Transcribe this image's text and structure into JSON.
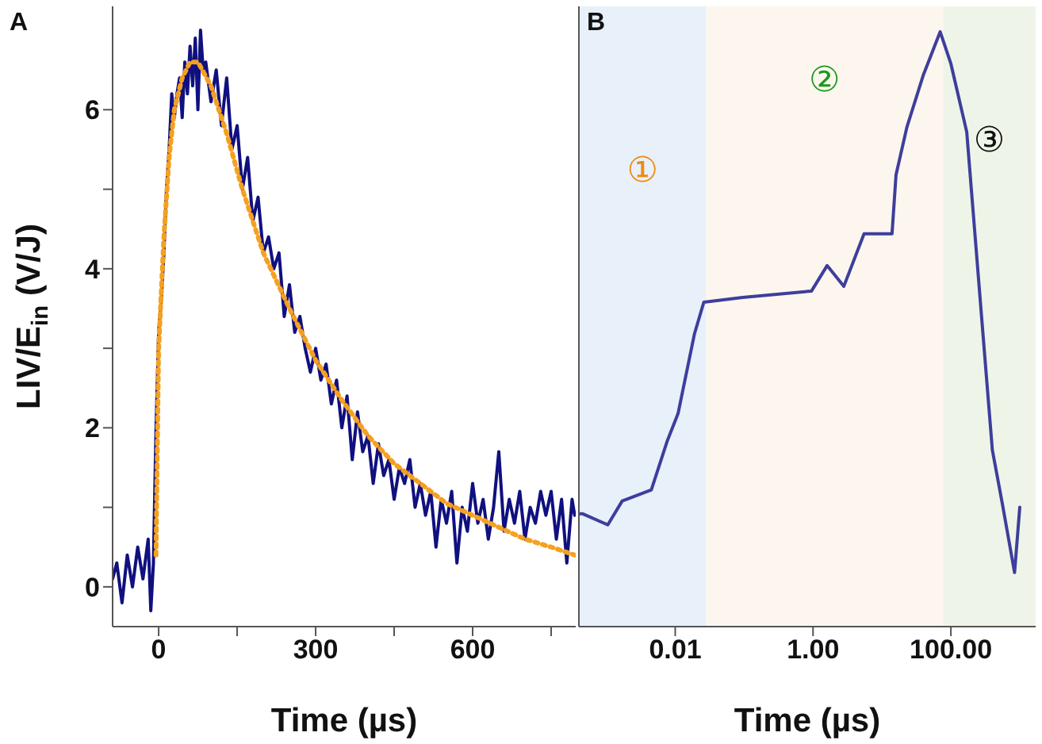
{
  "chart_data": [
    {
      "type": "line",
      "title": "A",
      "xlabel": "Time (µs)",
      "ylabel": "LIV/E$_{in}$ (V/J)",
      "xlim": [
        -88,
        797
      ],
      "xticks": [
        0,
        {
          "value": 150,
          "label": null
        },
        300,
        {
          "value": 450,
          "label": null
        },
        600,
        {
          "value": 750,
          "label": null
        }
      ],
      "ylim": [
        -0.5,
        7.3
      ],
      "yticks": [
        0,
        {
          "value": 1,
          "label": null
        },
        2,
        {
          "value": 3,
          "label": null
        },
        4,
        {
          "value": 5,
          "label": null
        },
        6
      ],
      "series": [
        {
          "color": "#10107f",
          "line_style": "solid",
          "x": [
            -88,
            -80,
            -70,
            -60,
            -50,
            -40,
            -30,
            -20,
            -15,
            -10,
            -5,
            0,
            5,
            10,
            15,
            20,
            25,
            30,
            35,
            40,
            45,
            50,
            55,
            60,
            65,
            70,
            75,
            80,
            85,
            90,
            100,
            110,
            120,
            130,
            140,
            150,
            160,
            170,
            180,
            190,
            200,
            210,
            220,
            230,
            240,
            250,
            260,
            270,
            280,
            290,
            300,
            310,
            320,
            330,
            340,
            350,
            360,
            370,
            380,
            390,
            400,
            410,
            420,
            430,
            440,
            450,
            460,
            470,
            480,
            490,
            500,
            510,
            520,
            530,
            540,
            550,
            560,
            570,
            580,
            590,
            600,
            610,
            620,
            630,
            640,
            650,
            660,
            670,
            680,
            690,
            700,
            710,
            720,
            730,
            740,
            750,
            760,
            770,
            780,
            790,
            795
          ],
          "values": [
            0.1,
            0.3,
            -0.2,
            0.4,
            0.0,
            0.5,
            0.1,
            0.6,
            -0.3,
            0.3,
            2.0,
            3.2,
            3.6,
            4.2,
            5.0,
            5.5,
            6.2,
            5.9,
            6.2,
            6.4,
            5.9,
            6.6,
            6.2,
            6.8,
            6.3,
            6.9,
            6.0,
            7.0,
            6.5,
            6.6,
            6.1,
            6.5,
            5.8,
            6.4,
            5.5,
            5.8,
            5.0,
            5.4,
            4.6,
            4.9,
            4.2,
            4.4,
            4.0,
            4.2,
            3.4,
            3.8,
            3.2,
            3.4,
            3.0,
            2.7,
            3.0,
            2.6,
            2.8,
            2.3,
            2.6,
            2.0,
            2.4,
            1.6,
            2.2,
            1.7,
            1.9,
            1.3,
            1.8,
            1.4,
            1.6,
            1.1,
            1.5,
            1.3,
            1.6,
            1.0,
            1.3,
            0.9,
            1.2,
            0.5,
            1.1,
            0.8,
            1.2,
            0.3,
            1.0,
            0.7,
            1.3,
            0.8,
            1.1,
            0.6,
            1.0,
            1.7,
            0.7,
            1.1,
            0.8,
            1.2,
            0.6,
            1.0,
            0.8,
            1.2,
            0.9,
            1.2,
            0.6,
            1.1,
            0.3,
            1.1,
            0.9
          ]
        },
        {
          "color": "#f5a020",
          "line_style": "dotted",
          "x": [
            -5,
            -2,
            0,
            5,
            10,
            20,
            30,
            45,
            60,
            75,
            100,
            130,
            160,
            200,
            250,
            300,
            350,
            400,
            450,
            500,
            550,
            600,
            650,
            700,
            750,
            795
          ],
          "values": [
            0.4,
            2.0,
            3.0,
            3.7,
            4.4,
            5.4,
            6.0,
            6.4,
            6.6,
            6.6,
            6.3,
            5.7,
            5.0,
            4.2,
            3.5,
            2.85,
            2.35,
            1.9,
            1.55,
            1.3,
            1.05,
            0.9,
            0.75,
            0.6,
            0.5,
            0.4
          ]
        }
      ]
    },
    {
      "type": "line",
      "title": "B",
      "xlabel": "Time (µs)",
      "log": "x",
      "tick_labels": "x",
      "xlim": [
        0.0004,
        1700
      ],
      "xticks": [
        {
          "value": 0.01,
          "label": "0.01"
        },
        {
          "value": 1,
          "label": "1.00"
        },
        {
          "value": 100,
          "label": "100.00"
        }
      ],
      "ylim": [
        -0.5,
        7.3
      ],
      "bands": [
        {
          "axis": "x",
          "from": 0.0004,
          "to": 0.028,
          "color": "#e8f0fa",
          "label": "①"
        },
        {
          "axis": "x",
          "from": 0.028,
          "to": 77,
          "color": "#fdf6ef",
          "label": "②"
        },
        {
          "axis": "x",
          "from": 77,
          "to": 1700,
          "color": "#eef5e8",
          "label": "③"
        }
      ],
      "series": [
        {
          "color": "#3e3e9c",
          "line_style": "solid",
          "x": [
            0.0004,
            0.00045,
            0.00105,
            0.0017,
            0.0045,
            0.0077,
            0.011,
            0.019,
            0.026,
            0.095,
            0.95,
            1.6,
            2.8,
            5.5,
            14,
            16,
            23,
            40,
            70,
            100,
            170,
            280,
            400,
            560,
            840,
            1000
          ],
          "values": [
            0.92,
            0.92,
            0.78,
            1.08,
            1.22,
            1.84,
            2.18,
            3.18,
            3.58,
            3.64,
            3.72,
            4.04,
            3.78,
            4.44,
            4.44,
            5.18,
            5.78,
            6.44,
            6.98,
            6.58,
            5.72,
            3.38,
            1.72,
            1.04,
            0.18,
            1.0
          ]
        }
      ]
    }
  ]
}
